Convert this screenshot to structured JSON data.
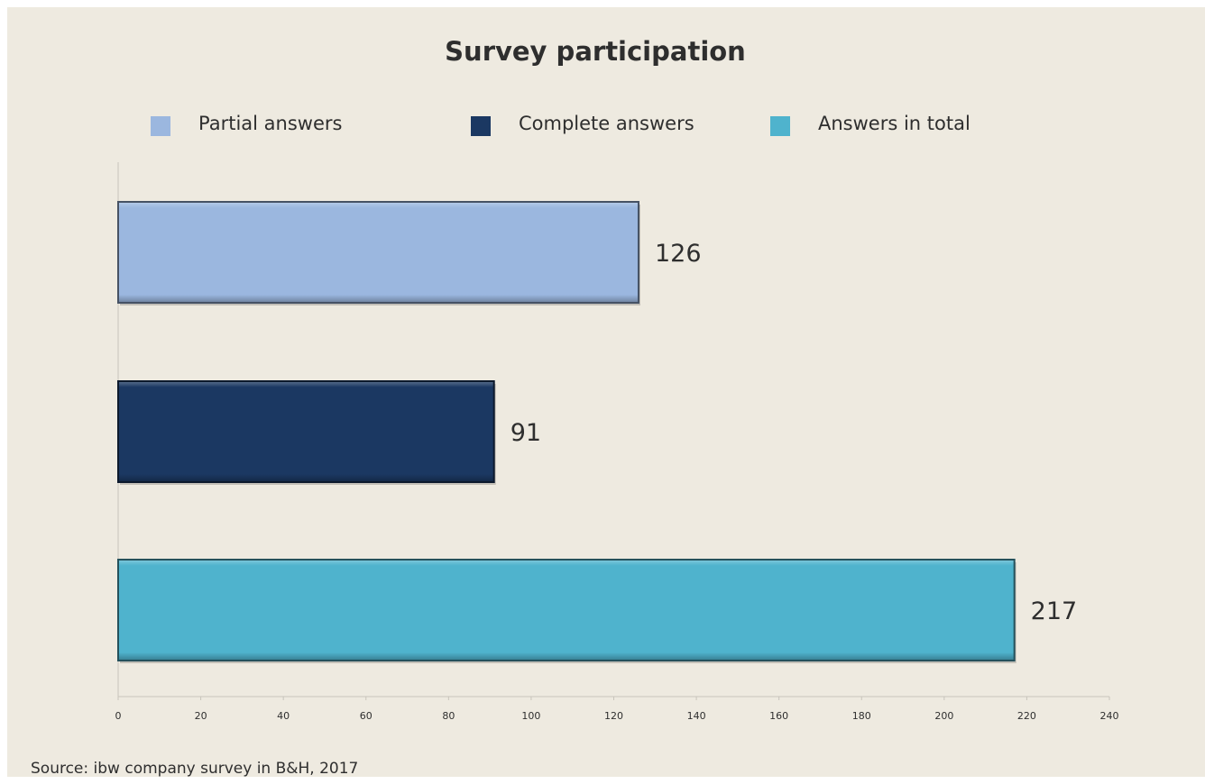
{
  "chart_data": {
    "type": "bar",
    "orientation": "horizontal",
    "title": "Survey participation",
    "categories": [
      "Partial answers",
      "Complete answers",
      "Answers in total"
    ],
    "values": [
      126,
      91,
      217
    ],
    "colors": [
      "#9bb7df",
      "#1b3862",
      "#4fb3cd"
    ],
    "data_labels": [
      "126",
      "91",
      "217"
    ],
    "xlim": [
      0,
      240
    ],
    "x_ticks": [
      "0",
      "20",
      "40",
      "60",
      "80",
      "100",
      "120",
      "140",
      "160",
      "180",
      "200",
      "220",
      "240"
    ],
    "xlabel": "",
    "ylabel": "",
    "grid": false,
    "legend_placement": "top"
  },
  "source": "Source: ibw company survey in B&H, 2017",
  "colors": {
    "background": "#eeeae0",
    "axis": "#c8c4bb",
    "text": "#2e2e2e"
  }
}
